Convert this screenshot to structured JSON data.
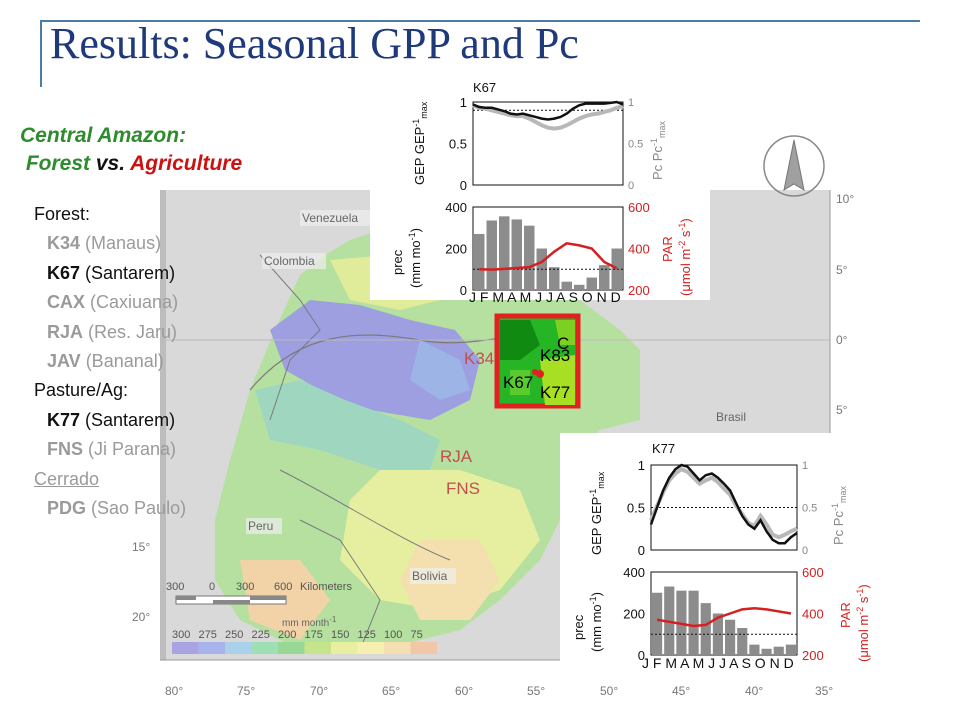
{
  "slide": {
    "title": "Results: Seasonal GPP and Pc",
    "subtitle": {
      "region": "Central Amazon:",
      "forest": "Forest",
      "vs": " vs. ",
      "agri": "Agriculture"
    }
  },
  "site_list": {
    "forest_header": "Forest:",
    "forest": [
      {
        "code": "K34",
        "name": " (Manaus)",
        "highlight": false
      },
      {
        "code": "K67",
        "name": " (Santarem)",
        "highlight": true
      },
      {
        "code": "CAX",
        "name": " (Caxiuana)",
        "highlight": false
      },
      {
        "code": "RJA",
        "name": " (Res. Jaru)",
        "highlight": false
      },
      {
        "code": "JAV",
        "name": " (Bananal)",
        "highlight": false
      }
    ],
    "pasture_header": "Pasture/Ag:",
    "pasture": [
      {
        "code": "K77",
        "name": " (Santarem)",
        "highlight": true
      },
      {
        "code": "FNS",
        "name": " (Ji Parana)",
        "highlight": false
      }
    ],
    "cerrado_header": "Cerrado",
    "cerrado": [
      {
        "code": "PDG",
        "name": " (Sao Paulo)",
        "highlight": false
      }
    ]
  },
  "map": {
    "countries": [
      "Venezuela",
      "Colombia",
      "Brasil",
      "Peru",
      "Bolivia"
    ],
    "lat_labels": [
      "10°",
      "5°",
      "0°",
      "5°",
      "15°",
      "20°"
    ],
    "lon_labels": [
      "80°",
      "75°",
      "70°",
      "65°",
      "60°",
      "55°",
      "50°",
      "45°",
      "40°",
      "35°"
    ],
    "scale_bar": {
      "ticks": [
        "300",
        "0",
        "300",
        "600"
      ],
      "unit": "Kilometers"
    },
    "precip_legend": {
      "unit": "mm month",
      "unit_sup": "-1",
      "values": [
        "300",
        "275",
        "250",
        "225",
        "200",
        "175",
        "150",
        "125",
        "100",
        "75"
      ],
      "colors": [
        "#a9a3e2",
        "#a7b3ea",
        "#a9d1ea",
        "#9fdfb4",
        "#98d894",
        "#c6e58a",
        "#e8efa0",
        "#f6f0b0",
        "#f5dfb0",
        "#f1c7a8"
      ]
    },
    "site_labels": {
      "K34": "K34",
      "RJA": "RJA",
      "FNS": "FNS",
      "C": "C",
      "K83": "K83",
      "K67": "K67",
      "K77": "K77"
    },
    "highlight_box_color": "#e32020"
  },
  "panels": [
    {
      "id": "K67",
      "title": "K67",
      "top": {
        "ylabel": "GEP GEP",
        "ylabel_sup": "-1",
        "ylabel_sub": "max",
        "rlabel": "Pc Pc",
        "rlabel_sup": "-1",
        "rlabel_sub": "max",
        "yticks": [
          "0",
          "0.5",
          "1"
        ],
        "rticks": [
          "0",
          "0.5",
          "1"
        ]
      },
      "bottom": {
        "ylabel1": "prec",
        "ylabel2": "(mm mo",
        "ylabel2_sup": "-1",
        "ylabel2_end": ")",
        "rlabel1": "PAR",
        "rlabel2": "(μmol m",
        "rlabel2_sup": "-2",
        "rlabel2_mid": " s",
        "rlabel2_sup2": "-1",
        "rlabel2_end": ")",
        "yticks": [
          "0",
          "200",
          "400"
        ],
        "rticks": [
          "200",
          "400",
          "600"
        ],
        "months": "J F M A M J  J A S O N D"
      }
    },
    {
      "id": "K77",
      "title": "K77",
      "top": {
        "ylabel": "GEP GEP",
        "ylabel_sup": "-1",
        "ylabel_sub": "max",
        "rlabel": "Pc Pc",
        "rlabel_sup": "-1",
        "rlabel_sub": "max",
        "yticks": [
          "0",
          "0.5",
          "1"
        ],
        "rticks": [
          "0",
          "0.5",
          "1"
        ]
      },
      "bottom": {
        "ylabel1": "prec",
        "ylabel2": "(mm mo",
        "ylabel2_sup": "-1",
        "ylabel2_end": ")",
        "rlabel1": "PAR",
        "rlabel2": "(μmol m",
        "rlabel2_sup": "-2",
        "rlabel2_mid": " s",
        "rlabel2_sup2": "-1",
        "rlabel2_end": ")",
        "yticks": [
          "0",
          "200",
          "400"
        ],
        "rticks": [
          "200",
          "400",
          "600"
        ],
        "months": "J F M A M J  J A S O N D"
      }
    }
  ],
  "chart_data": [
    {
      "type": "line",
      "panel": "K67 GEP/Pc",
      "x": [
        0,
        0.5,
        1,
        1.5,
        2,
        2.5,
        3,
        3.5,
        4,
        4.5,
        5,
        5.5,
        6,
        6.5,
        7,
        7.5,
        8,
        8.5,
        9,
        9.5,
        10,
        10.5,
        11,
        11.5,
        12
      ],
      "series": [
        {
          "name": "GEP GEP-1max",
          "values": [
            0.97,
            0.94,
            0.93,
            0.93,
            0.91,
            0.89,
            0.86,
            0.85,
            0.86,
            0.84,
            0.82,
            0.8,
            0.79,
            0.8,
            0.82,
            0.86,
            0.92,
            0.96,
            0.98,
            0.98,
            0.98,
            0.98,
            0.99,
            1.0,
            0.97
          ]
        },
        {
          "name": "Pc Pc-1max",
          "values": [
            0.96,
            0.93,
            0.92,
            0.9,
            0.88,
            0.86,
            0.84,
            0.83,
            0.83,
            0.8,
            0.76,
            0.72,
            0.69,
            0.68,
            0.69,
            0.72,
            0.76,
            0.8,
            0.83,
            0.85,
            0.86,
            0.88,
            0.9,
            0.93,
            0.95
          ]
        }
      ],
      "reference_line": 0.9,
      "ylim": [
        0,
        1
      ]
    },
    {
      "type": "bar",
      "panel": "K67 prec/PAR",
      "categories": [
        "J",
        "F",
        "M",
        "A",
        "M",
        "J",
        "J",
        "A",
        "S",
        "O",
        "N",
        "D"
      ],
      "series": [
        {
          "name": "prec",
          "axis": "left",
          "values": [
            270,
            335,
            355,
            340,
            310,
            200,
            110,
            40,
            25,
            60,
            120,
            200
          ]
        },
        {
          "name": "PAR",
          "axis": "right",
          "type": "line",
          "values": [
            300,
            298,
            302,
            306,
            310,
            335,
            385,
            425,
            415,
            400,
            335,
            305
          ]
        }
      ],
      "reference_line": 100,
      "ylim": [
        0,
        400
      ],
      "y2lim": [
        200,
        600
      ]
    },
    {
      "type": "line",
      "panel": "K77 GEP/Pc",
      "x": [
        0,
        0.5,
        1,
        1.5,
        2,
        2.5,
        3,
        3.5,
        4,
        4.5,
        5,
        5.5,
        6,
        6.5,
        7,
        7.5,
        8,
        8.5,
        9,
        9.5,
        10,
        10.5,
        11,
        11.5,
        12
      ],
      "series": [
        {
          "name": "GEP GEP-1max",
          "values": [
            0.3,
            0.5,
            0.7,
            0.85,
            0.95,
            1.0,
            0.98,
            0.9,
            0.82,
            0.88,
            0.9,
            0.85,
            0.78,
            0.7,
            0.55,
            0.4,
            0.3,
            0.25,
            0.35,
            0.22,
            0.12,
            0.08,
            0.08,
            0.15,
            0.2
          ]
        },
        {
          "name": "Pc Pc-1max",
          "values": [
            0.35,
            0.52,
            0.68,
            0.82,
            0.9,
            0.95,
            0.92,
            0.85,
            0.78,
            0.82,
            0.85,
            0.8,
            0.72,
            0.65,
            0.52,
            0.42,
            0.32,
            0.28,
            0.4,
            0.3,
            0.18,
            0.15,
            0.18,
            0.22,
            0.25
          ]
        }
      ],
      "reference_line": 0.5,
      "ylim": [
        0,
        1
      ]
    },
    {
      "type": "bar",
      "panel": "K77 prec/PAR",
      "categories": [
        "J",
        "F",
        "M",
        "A",
        "M",
        "J",
        "J",
        "A",
        "S",
        "O",
        "N",
        "D"
      ],
      "series": [
        {
          "name": "prec",
          "axis": "left",
          "values": [
            300,
            330,
            310,
            310,
            250,
            200,
            170,
            130,
            50,
            30,
            40,
            50
          ]
        },
        {
          "name": "PAR",
          "axis": "right",
          "type": "line",
          "values": [
            370,
            360,
            350,
            340,
            345,
            380,
            400,
            420,
            425,
            420,
            410,
            400
          ]
        }
      ],
      "reference_line": 100,
      "ylim": [
        0,
        400
      ],
      "y2lim": [
        200,
        600
      ]
    }
  ]
}
